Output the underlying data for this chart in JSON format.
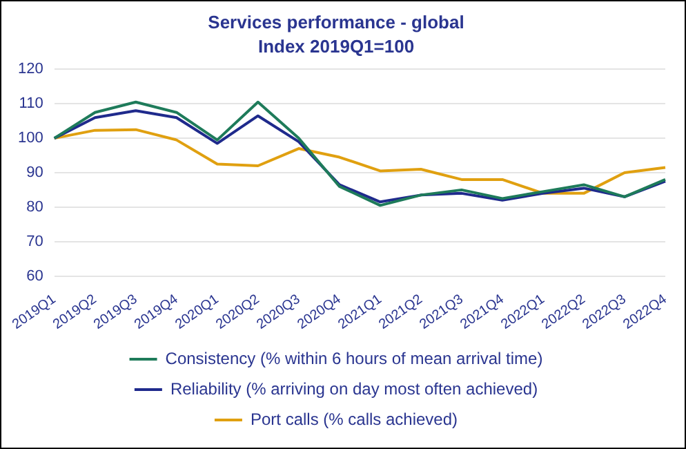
{
  "chart_data": {
    "type": "line",
    "title": "Services performance - global",
    "subtitle": "Index 2019Q1=100",
    "categories": [
      "2019Q1",
      "2019Q2",
      "2019Q3",
      "2019Q4",
      "2020Q1",
      "2020Q2",
      "2020Q3",
      "2020Q4",
      "2021Q1",
      "2021Q2",
      "2021Q3",
      "2021Q4",
      "2022Q1",
      "2022Q2",
      "2022Q3",
      "2022Q4"
    ],
    "series": [
      {
        "name": "Consistency (% within 6 hours of mean arrival time)",
        "color": "#1e7b5a",
        "values": [
          100,
          107.5,
          110.5,
          107.5,
          99.5,
          110.5,
          100,
          86,
          80.5,
          83.5,
          85,
          82.5,
          84.5,
          86.5,
          83,
          88
        ]
      },
      {
        "name": "Reliability (% arriving on day most often achieved)",
        "color": "#1f2a8c",
        "values": [
          100,
          106,
          108,
          106,
          98.5,
          106.5,
          99,
          86.5,
          81.5,
          83.5,
          84,
          82,
          84,
          85.5,
          83,
          87.5
        ]
      },
      {
        "name": "Port calls (% calls achieved)",
        "color": "#e0a010",
        "values": [
          100,
          102.3,
          102.5,
          99.5,
          92.5,
          92,
          97,
          94.5,
          90.5,
          91,
          88,
          88,
          84,
          84,
          90,
          91.5
        ]
      }
    ],
    "ylim": [
      60,
      120
    ],
    "yticks": [
      60,
      70,
      80,
      90,
      100,
      110,
      120
    ],
    "grid": "y",
    "legend": "bottom",
    "marker": "none",
    "line_style": "solid"
  }
}
